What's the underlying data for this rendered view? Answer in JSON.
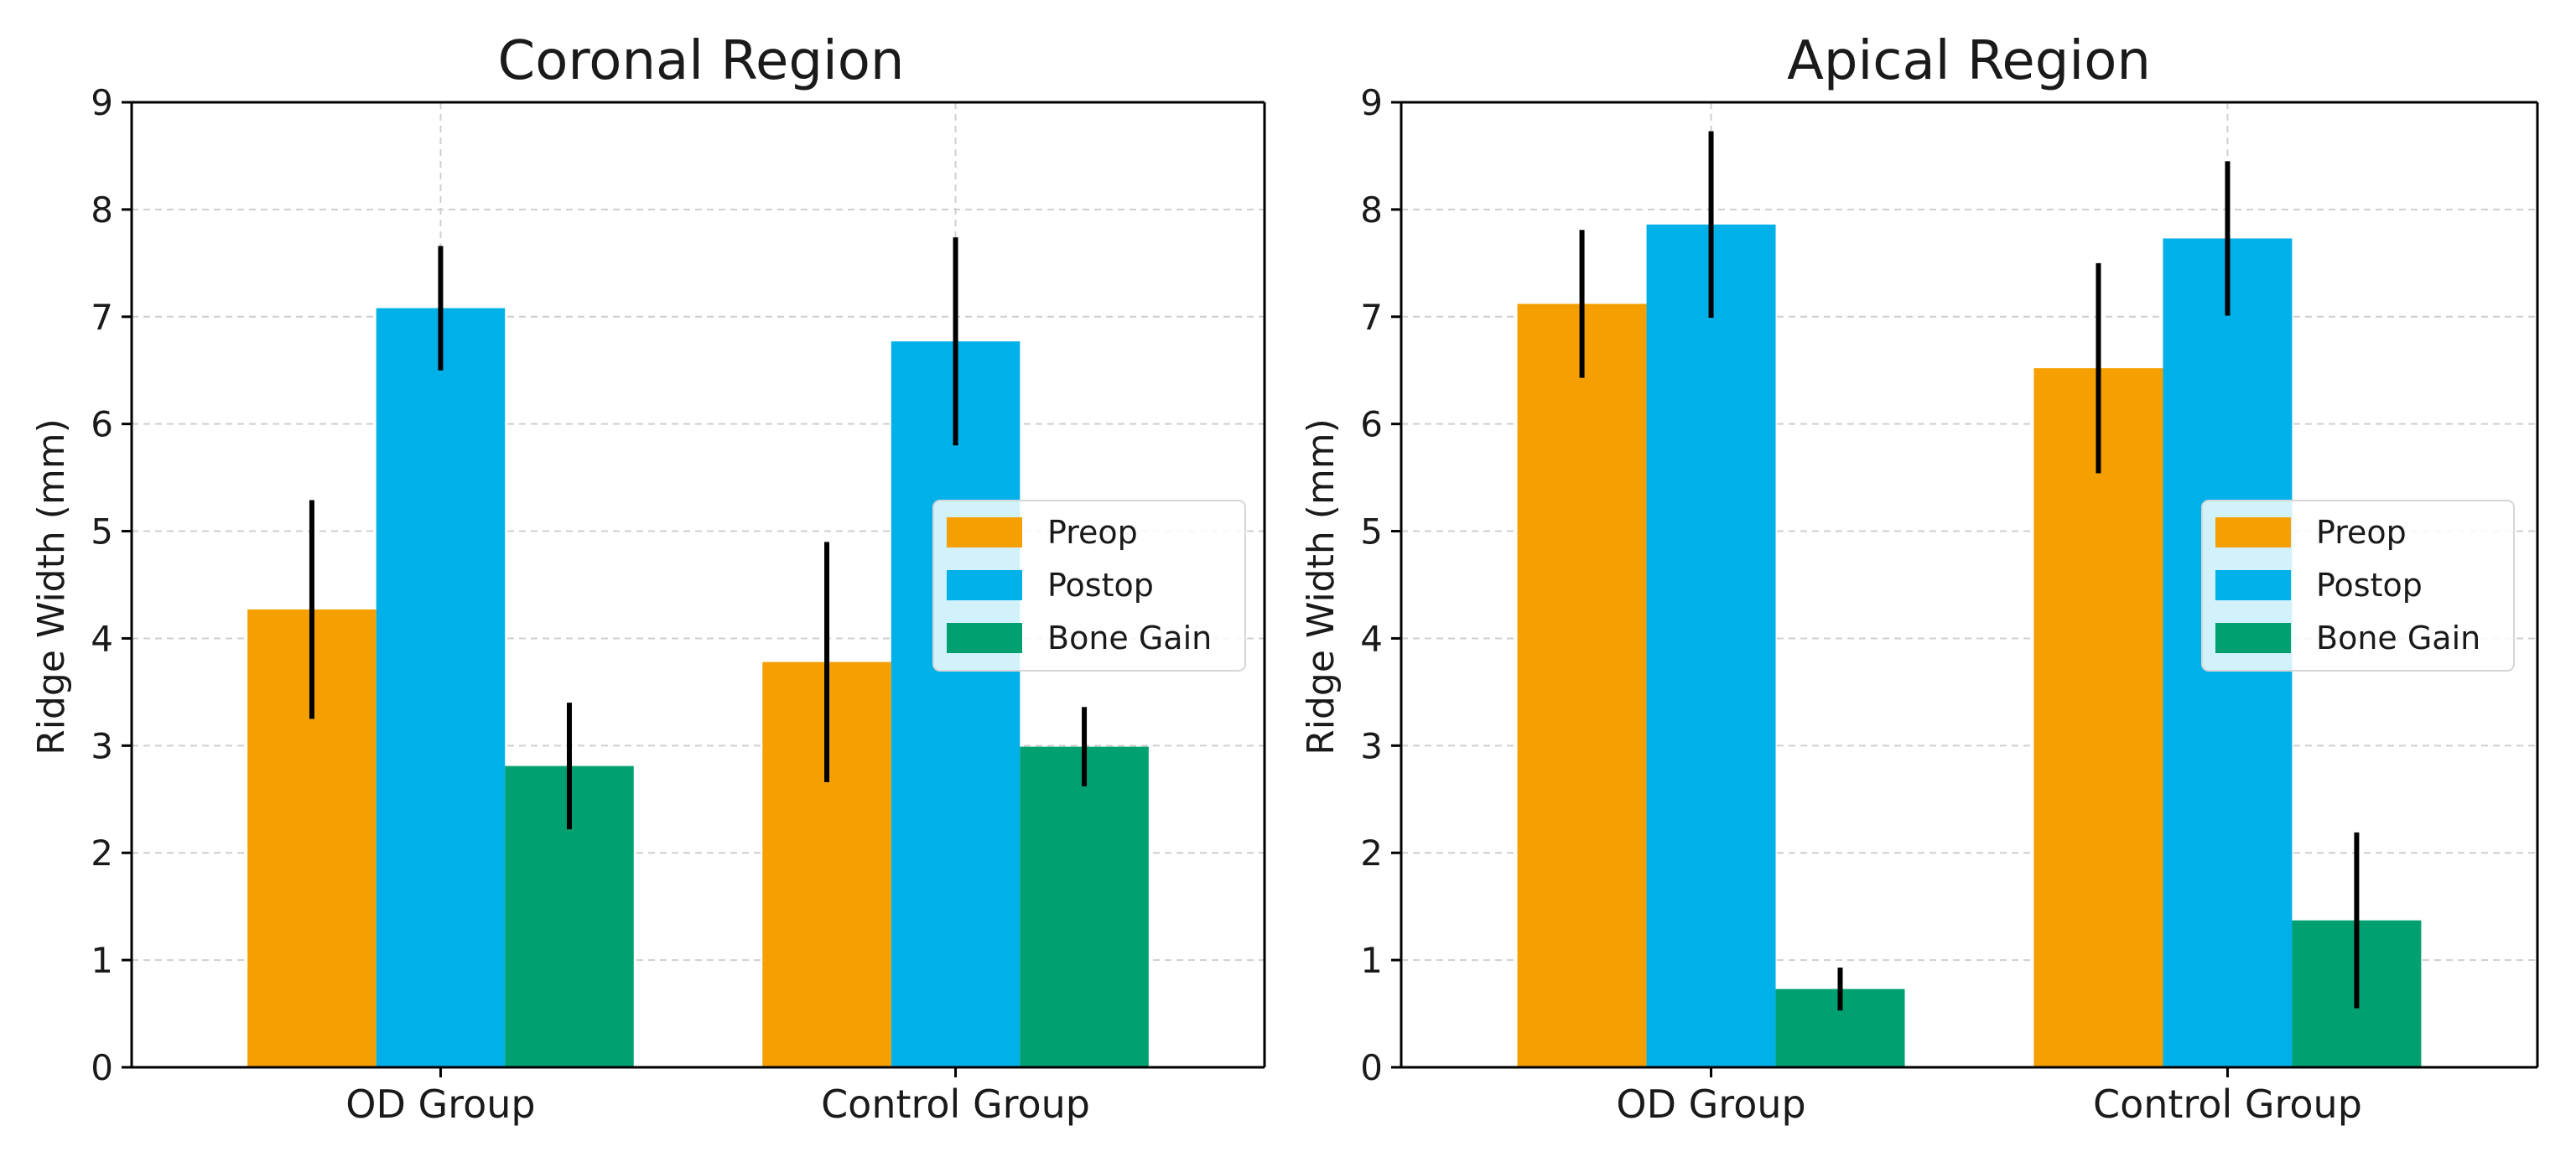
{
  "chart_data": [
    {
      "type": "bar",
      "title": "Coronal Region",
      "xlabel": "",
      "ylabel": "Ridge Width (mm)",
      "ylim": [
        0,
        9
      ],
      "yticks": [
        "0",
        "1",
        "2",
        "3",
        "4",
        "5",
        "6",
        "7",
        "8",
        "9"
      ],
      "grid": true,
      "legend_position": "center-right",
      "categories": [
        "OD Group",
        "Control Group"
      ],
      "series": [
        {
          "name": "Preop",
          "color": "#F5A000",
          "values": [
            4.27,
            3.78
          ],
          "errors": [
            1.02,
            1.12
          ]
        },
        {
          "name": "Postop",
          "color": "#00B0E8",
          "values": [
            7.08,
            6.77
          ],
          "errors": [
            0.58,
            0.97
          ]
        },
        {
          "name": "Bone Gain",
          "color": "#00A070",
          "values": [
            2.81,
            2.99
          ],
          "errors": [
            0.59,
            0.37
          ]
        }
      ]
    },
    {
      "type": "bar",
      "title": "Apical Region",
      "xlabel": "",
      "ylabel": "Ridge Width (mm)",
      "ylim": [
        0,
        9
      ],
      "yticks": [
        "0",
        "1",
        "2",
        "3",
        "4",
        "5",
        "6",
        "7",
        "8",
        "9"
      ],
      "grid": true,
      "legend_position": "center-right",
      "categories": [
        "OD Group",
        "Control Group"
      ],
      "series": [
        {
          "name": "Preop",
          "color": "#F5A000",
          "values": [
            7.12,
            6.52
          ],
          "errors": [
            0.69,
            0.98
          ]
        },
        {
          "name": "Postop",
          "color": "#00B0E8",
          "values": [
            7.86,
            7.73
          ],
          "errors": [
            0.87,
            0.72
          ]
        },
        {
          "name": "Bone Gain",
          "color": "#00A070",
          "values": [
            0.73,
            1.37
          ],
          "errors": [
            0.2,
            0.82
          ]
        }
      ]
    }
  ]
}
